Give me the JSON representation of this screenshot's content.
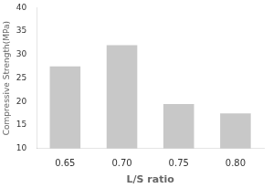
{
  "chart_data": {
    "type": "bar",
    "categories": [
      "0.65",
      "0.70",
      "0.75",
      "0.80"
    ],
    "values": [
      27.5,
      32.0,
      19.5,
      17.5
    ],
    "color": "#c8c8c8",
    "xlabel": "L/S ratio",
    "ylabel": "Compressive Strength(MPa)",
    "ylim": [
      10,
      40
    ],
    "yticks": [
      10,
      15,
      20,
      25,
      30,
      35,
      40
    ],
    "grid": false
  }
}
